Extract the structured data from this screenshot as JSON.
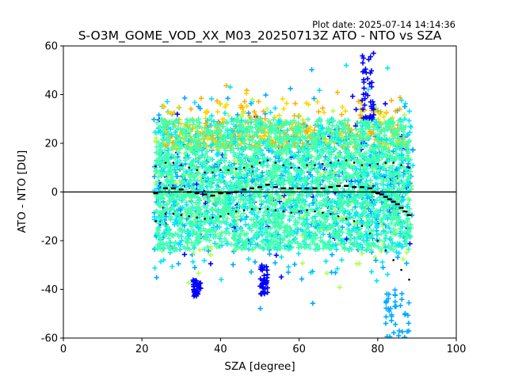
{
  "chart_data": {
    "type": "scatter",
    "title": "S-O3M_GOME_VOD_XX_M03_20250713Z ATO - NTO vs SZA",
    "plot_date": "Plot date: 2025-07-14 14:14:36",
    "xlabel": "SZA [degree]",
    "ylabel": "ATO - NTO [DU]",
    "xlim": [
      0,
      100
    ],
    "ylim": [
      -60,
      60
    ],
    "xticks": [
      0,
      20,
      40,
      60,
      80,
      100
    ],
    "yticks": [
      -60,
      -40,
      -20,
      0,
      20,
      40,
      60
    ],
    "grid": false,
    "legend": "none",
    "zero_line": 0,
    "marker": "plus",
    "colors": {
      "density_low": "#0000ff",
      "density_mid_low": "#00aaff",
      "density_mid": "#00e5ff",
      "density_core": "#40ffb0",
      "density_mid_high": "#b0ff50",
      "density_high": "#ffd700",
      "density_top": "#ffb000",
      "stats": "#000000"
    },
    "point_cloud": {
      "x_range": [
        23,
        89
      ],
      "core_band": [
        -24,
        30
      ],
      "notable_outliers": [
        {
          "sza_range": [
            76,
            79
          ],
          "ato_nto_range": [
            30,
            57
          ],
          "color": "blue"
        },
        {
          "sza_range": [
            50,
            52
          ],
          "ato_nto_range": [
            -42,
            -30
          ],
          "color": "blue"
        },
        {
          "sza_range": [
            33,
            35
          ],
          "ato_nto_range": [
            -43,
            -36
          ],
          "color": "blue"
        },
        {
          "sza_range": [
            82,
            88
          ],
          "ato_nto_range": [
            -60,
            -40
          ],
          "color": "cyan"
        }
      ]
    },
    "series": [
      {
        "name": "median",
        "x": [
          23.5,
          26,
          28,
          30,
          32,
          34,
          36,
          38,
          40,
          42,
          44,
          46,
          48,
          50,
          52,
          54,
          56,
          58,
          60,
          62,
          64,
          66,
          68,
          70,
          72,
          74,
          76,
          78,
          79,
          80,
          81,
          82,
          83,
          84,
          85,
          86,
          87,
          88
        ],
        "y": [
          -0.5,
          1.5,
          1.5,
          1,
          0,
          -0.5,
          -1,
          -1.5,
          -0.5,
          -0.5,
          0,
          1,
          1.5,
          2,
          3,
          2,
          1.5,
          1.5,
          1.5,
          1.5,
          1.5,
          1.5,
          2,
          2.5,
          2.5,
          2,
          2,
          1.5,
          0,
          -0.5,
          -1,
          -2,
          -3,
          -4,
          -5,
          -6.5,
          -8,
          -9.5
        ]
      },
      {
        "name": "upper",
        "x": [
          23.5,
          26,
          28,
          30,
          32,
          34,
          36,
          38,
          40,
          42,
          44,
          46,
          48,
          50,
          52,
          54,
          56,
          58,
          60,
          62,
          64,
          66,
          68,
          70,
          72,
          74,
          76,
          78,
          80,
          82,
          84,
          86,
          88
        ],
        "y": [
          10.5,
          12,
          12,
          11,
          10,
          9,
          8,
          8,
          9,
          9,
          9.5,
          10,
          10.5,
          12,
          13,
          12,
          11,
          10,
          10,
          11,
          11,
          11.5,
          12,
          13,
          13,
          12,
          11,
          11,
          11.5,
          12,
          12,
          11,
          10
        ]
      },
      {
        "name": "lower",
        "x": [
          23.5,
          26,
          28,
          30,
          32,
          34,
          36,
          38,
          40,
          42,
          44,
          46,
          48,
          50,
          52,
          54,
          56,
          58,
          60,
          62,
          64,
          66,
          68,
          70,
          72,
          74,
          76,
          78,
          80,
          82,
          84,
          86,
          88
        ],
        "y": [
          -12,
          -9,
          -9,
          -9.5,
          -10,
          -10.5,
          -11,
          -10.5,
          -10,
          -9,
          -8,
          -7.5,
          -7,
          -7,
          -7,
          -7.5,
          -8,
          -8.5,
          -8,
          -7.5,
          -8,
          -8.5,
          -9,
          -10,
          -11,
          -12,
          -14,
          -17,
          -20,
          -24,
          -28,
          -32,
          -36
        ]
      }
    ]
  }
}
